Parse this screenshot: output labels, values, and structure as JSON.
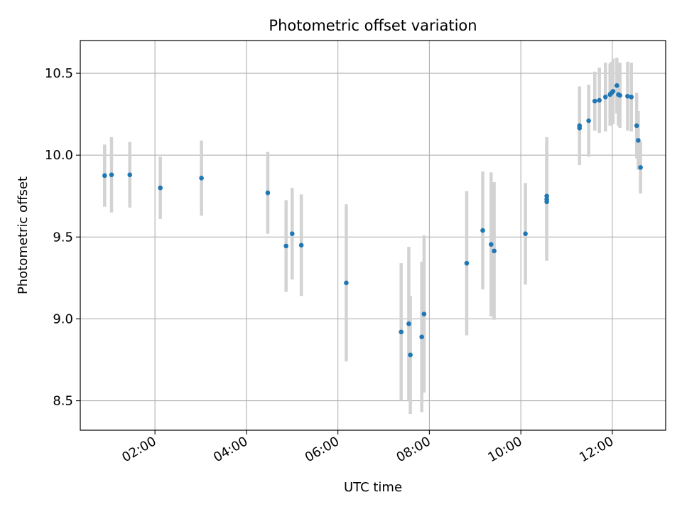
{
  "chart_data": {
    "type": "scatter",
    "title": "Photometric offset variation",
    "xlabel": "UTC time",
    "ylabel": "Photometric offset",
    "x_unit": "hours UTC",
    "xlim": [
      "00:22",
      "13:10"
    ],
    "ylim": [
      8.32,
      10.7
    ],
    "grid": true,
    "x_ticks": [
      {
        "value": "02:00",
        "label": "02:00"
      },
      {
        "value": "04:00",
        "label": "04:00"
      },
      {
        "value": "06:00",
        "label": "06:00"
      },
      {
        "value": "08:00",
        "label": "08:00"
      },
      {
        "value": "10:00",
        "label": "10:00"
      },
      {
        "value": "12:00",
        "label": "12:00"
      }
    ],
    "y_ticks": [
      {
        "value": 8.5,
        "label": "8.5"
      },
      {
        "value": 9.0,
        "label": "9.0"
      },
      {
        "value": 9.5,
        "label": "9.5"
      },
      {
        "value": 10.0,
        "label": "10.0"
      },
      {
        "value": 10.5,
        "label": "10.5"
      }
    ],
    "colors": {
      "points": "#1f77b4",
      "errorbars": "#d3d3d3",
      "grid": "#b0b0b0"
    },
    "series": [
      {
        "points": [
          {
            "x": "00:54",
            "y": 9.875,
            "err": 0.19
          },
          {
            "x": "01:03",
            "y": 9.88,
            "err": 0.23
          },
          {
            "x": "01:27",
            "y": 9.88,
            "err": 0.2
          },
          {
            "x": "02:07",
            "y": 9.8,
            "err": 0.19
          },
          {
            "x": "03:01",
            "y": 9.86,
            "err": 0.23
          },
          {
            "x": "04:28",
            "y": 9.77,
            "err": 0.25
          },
          {
            "x": "04:52",
            "y": 9.445,
            "err": 0.28
          },
          {
            "x": "05:00",
            "y": 9.52,
            "err": 0.28
          },
          {
            "x": "05:12",
            "y": 9.45,
            "err": 0.31
          },
          {
            "x": "06:11",
            "y": 9.22,
            "err": 0.48
          },
          {
            "x": "07:23",
            "y": 8.92,
            "err": 0.42
          },
          {
            "x": "07:33",
            "y": 8.97,
            "err": 0.47
          },
          {
            "x": "07:35",
            "y": 8.78,
            "err": 0.36
          },
          {
            "x": "07:50",
            "y": 8.89,
            "err": 0.46
          },
          {
            "x": "07:53",
            "y": 9.03,
            "err": 0.48
          },
          {
            "x": "08:49",
            "y": 9.34,
            "err": 0.44
          },
          {
            "x": "09:10",
            "y": 9.54,
            "err": 0.36
          },
          {
            "x": "09:21",
            "y": 9.455,
            "err": 0.44
          },
          {
            "x": "09:25",
            "y": 9.415,
            "err": 0.42
          },
          {
            "x": "10:06",
            "y": 9.52,
            "err": 0.31
          },
          {
            "x": "10:34",
            "y": 9.75,
            "err": 0.36
          },
          {
            "x": "10:34",
            "y": 9.73,
            "err": 0.35
          },
          {
            "x": "10:34",
            "y": 9.715,
            "err": 0.36
          },
          {
            "x": "11:17",
            "y": 10.18,
            "err": 0.24
          },
          {
            "x": "11:17",
            "y": 10.165,
            "err": 0.22
          },
          {
            "x": "11:29",
            "y": 10.21,
            "err": 0.22
          },
          {
            "x": "11:37",
            "y": 10.33,
            "err": 0.18
          },
          {
            "x": "11:43",
            "y": 10.335,
            "err": 0.2
          },
          {
            "x": "11:51",
            "y": 10.355,
            "err": 0.21
          },
          {
            "x": "11:57",
            "y": 10.37,
            "err": 0.19
          },
          {
            "x": "11:59",
            "y": 10.38,
            "err": 0.19
          },
          {
            "x": "12:01",
            "y": 10.39,
            "err": 0.2
          },
          {
            "x": "12:06",
            "y": 10.425,
            "err": 0.17
          },
          {
            "x": "12:08",
            "y": 10.37,
            "err": 0.19
          },
          {
            "x": "12:10",
            "y": 10.365,
            "err": 0.2
          },
          {
            "x": "12:20",
            "y": 10.36,
            "err": 0.21
          },
          {
            "x": "12:25",
            "y": 10.355,
            "err": 0.21
          },
          {
            "x": "12:32",
            "y": 10.18,
            "err": 0.2
          },
          {
            "x": "12:34",
            "y": 10.09,
            "err": 0.18
          },
          {
            "x": "12:37",
            "y": 9.925,
            "err": 0.16
          }
        ]
      }
    ]
  }
}
